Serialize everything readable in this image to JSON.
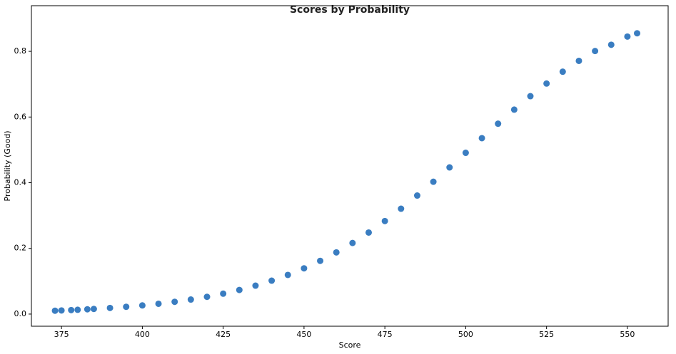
{
  "chart_data": {
    "type": "scatter",
    "title": "Scores by Probability",
    "x_label": "Score",
    "y_label": "Probability (Good)",
    "series": [
      {
        "color": "#3a7dc1",
        "x": [
          373,
          375,
          378,
          380,
          383,
          385,
          390,
          395,
          400,
          405,
          410,
          415,
          420,
          425,
          430,
          435,
          440,
          445,
          450,
          455,
          460,
          465,
          470,
          475,
          480,
          485,
          490,
          495,
          500,
          505,
          510,
          515,
          520,
          525,
          530,
          535,
          540,
          545,
          550,
          553
        ],
        "values": [
          0.0102,
          0.011,
          0.0122,
          0.0131,
          0.0146,
          0.0156,
          0.0186,
          0.0222,
          0.0264,
          0.0314,
          0.0374,
          0.0443,
          0.0525,
          0.0622,
          0.0734,
          0.0865,
          0.1017,
          0.1192,
          0.1393,
          0.1621,
          0.1878,
          0.2165,
          0.2483,
          0.2832,
          0.3208,
          0.3609,
          0.403,
          0.4466,
          0.4911,
          0.5357,
          0.5797,
          0.6225,
          0.6635,
          0.702,
          0.738,
          0.771,
          0.801,
          0.82,
          0.845,
          0.855
        ]
      }
    ],
    "xlim": [
      365.7,
      562.6
    ],
    "xticks": [
      375,
      400,
      425,
      450,
      475,
      500,
      525,
      550
    ],
    "ylim": [
      -0.037,
      0.939
    ],
    "yticks": [
      {
        "value": 0,
        "label": "0.0"
      },
      0.2,
      0.4,
      0.6,
      0.8
    ],
    "grid": false
  }
}
